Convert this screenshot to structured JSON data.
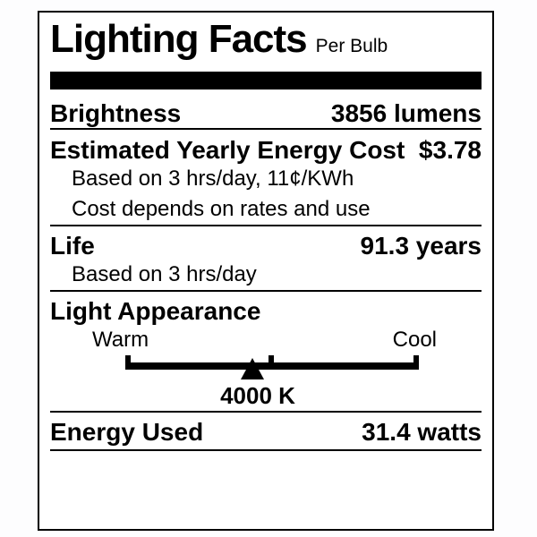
{
  "label": {
    "title": "Lighting Facts",
    "subtitle": "Per Bulb",
    "brightness": {
      "name": "Brightness",
      "value": "3856 lumens"
    },
    "energy_cost": {
      "name": "Estimated Yearly Energy Cost",
      "value": "$3.78",
      "notes": [
        "Based on 3 hrs/day, 11¢/KWh",
        "Cost depends on rates and use"
      ]
    },
    "life": {
      "name": "Life",
      "value": "91.3 years",
      "notes": [
        "Based on 3 hrs/day"
      ]
    },
    "light_appearance": {
      "name": "Light Appearance",
      "warm_label": "Warm",
      "cool_label": "Cool",
      "kelvin": "4000 K",
      "marker_position_pct": 43.3
    },
    "energy_used": {
      "name": "Energy Used",
      "value": "31.4 watts"
    },
    "colors": {
      "ink": "#000000",
      "background": "#ffffff"
    }
  }
}
